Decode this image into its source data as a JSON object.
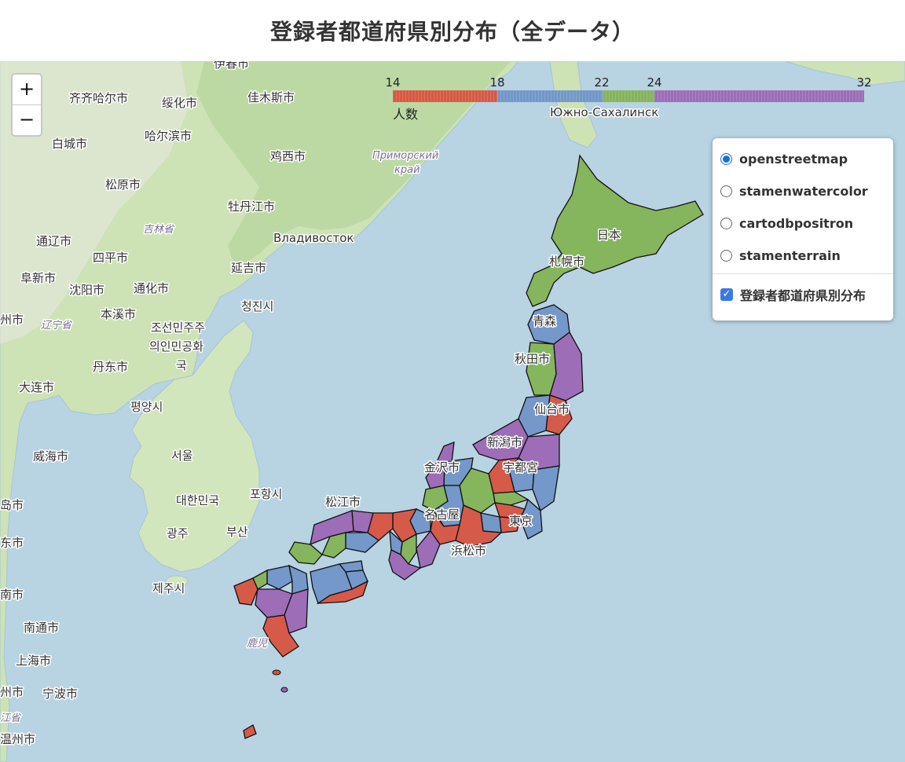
{
  "title": "登録者都道府県別分布（全データ）",
  "zoom": {
    "in_label": "+",
    "out_label": "−"
  },
  "legend": {
    "ticks": [
      "14",
      "18",
      "22",
      "24",
      "32"
    ],
    "caption": "人数",
    "bins": [
      {
        "from": 14,
        "to": 18,
        "color": "#d94d39"
      },
      {
        "from": 18,
        "to": 22,
        "color": "#6b91c7"
      },
      {
        "from": 22,
        "to": 24,
        "color": "#7fb14f"
      },
      {
        "from": 24,
        "to": 32,
        "color": "#9b62b3"
      }
    ]
  },
  "layer_control": {
    "base_layers": [
      {
        "label": "openstreetmap",
        "selected": true
      },
      {
        "label": "stamenwatercolor",
        "selected": false
      },
      {
        "label": "cartodbpositron",
        "selected": false
      },
      {
        "label": "stamenterrain",
        "selected": false
      }
    ],
    "overlays": [
      {
        "label": "登録者都道府県別分布",
        "checked": true
      }
    ]
  },
  "map_labels": {
    "qiqihar": "齐齐哈尔市",
    "suihua": "绥化市",
    "jiamusi": "佳木斯市",
    "yichun": "伊春市",
    "harbin": "哈尔滨市",
    "baicheng": "白城市",
    "jixi": "鸡西市",
    "songyuan": "松原市",
    "mudanjiang": "牡丹江市",
    "jilin_prov": "吉林省",
    "vladivostok": "Владивосток",
    "tongliao": "通辽市",
    "siping": "四平市",
    "fuxin": "阜新市",
    "shenyang": "沈阳市",
    "tonghua": "通化市",
    "yanji": "延吉市",
    "qingjin": "청진시",
    "benxi": "本溪市",
    "liaoning": "辽宁省",
    "dprk1": "조선민주주",
    "dprk2": "의인민공화",
    "dprk3": "국",
    "dandong": "丹东市",
    "dalian": "大连市",
    "pyongyang": "평양시",
    "weihai": "威海市",
    "seoul": "서울",
    "rok": "대한민국",
    "pohang": "포항시",
    "gwangju": "광주",
    "busan": "부산",
    "jeju": "제주시",
    "nantong": "南通市",
    "shanghai": "上海市",
    "ningbo": "宁波市",
    "yuzhno": "Южно-Сахалинск",
    "primorsky1": "Приморский",
    "primorsky2": "край",
    "japan": "日本",
    "sapporo": "札幌市",
    "aomori": "青森",
    "akita": "秋田市",
    "sendai": "仙台市",
    "niigata": "新潟市",
    "kanazawa": "金沢市",
    "utsunomiya": "宇都宮",
    "matsue": "松江市",
    "nagoya": "名古屋",
    "tokyo": "東京",
    "hamamatsu": "浜松市",
    "kagoshima": "鹿児",
    "edge1": "州市",
    "edge2": "岛市",
    "edge3": "东市",
    "edge4": "南市",
    "edge5": "州市",
    "edge6": "江省",
    "edge7": "温州市"
  }
}
